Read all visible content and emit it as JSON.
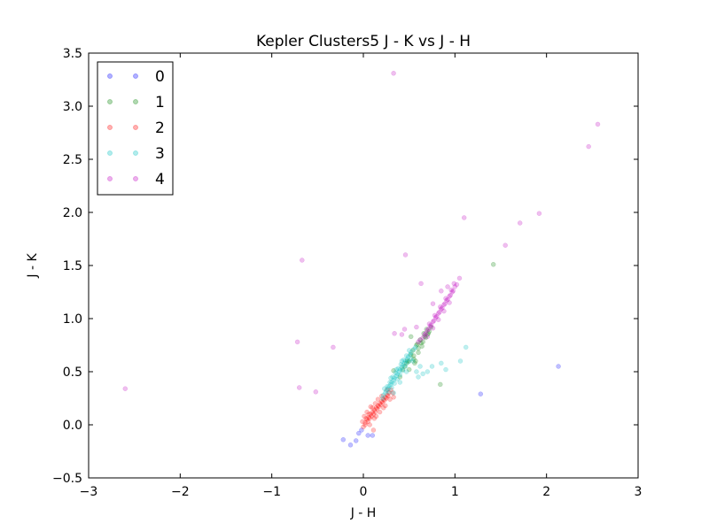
{
  "chart_data": {
    "type": "scatter",
    "title": "Kepler Clusters5 J - K vs J - H",
    "xlabel": "J - H",
    "ylabel": "J - K",
    "xlim": [
      -3,
      3
    ],
    "ylim": [
      -0.5,
      3.5
    ],
    "xticks": [
      -3,
      -2,
      -1,
      0,
      1,
      2,
      3
    ],
    "xtick_labels": [
      "−3",
      "−2",
      "−1",
      "0",
      "1",
      "2",
      "3"
    ],
    "yticks": [
      -0.5,
      0.0,
      0.5,
      1.0,
      1.5,
      2.0,
      2.5,
      3.0,
      3.5
    ],
    "ytick_labels": [
      "−0.5",
      "0.0",
      "0.5",
      "1.0",
      "1.5",
      "2.0",
      "2.5",
      "3.0",
      "3.5"
    ],
    "grid": false,
    "legend_position": "top-left",
    "series": [
      {
        "name": "0",
        "color": "#0000ff",
        "points": [
          [
            -0.22,
            -0.14
          ],
          [
            -0.14,
            -0.19
          ],
          [
            -0.08,
            -0.15
          ],
          [
            -0.05,
            -0.08
          ],
          [
            -0.02,
            -0.05
          ],
          [
            1.28,
            0.29
          ],
          [
            2.13,
            0.55
          ],
          [
            0.05,
            -0.1
          ],
          [
            0.1,
            -0.1
          ]
        ]
      },
      {
        "name": "1",
        "color": "#008000",
        "points": [
          [
            0.45,
            0.55
          ],
          [
            0.5,
            0.6
          ],
          [
            0.55,
            0.65
          ],
          [
            0.6,
            0.72
          ],
          [
            0.65,
            0.78
          ],
          [
            0.68,
            0.82
          ],
          [
            0.7,
            0.85
          ],
          [
            0.72,
            0.88
          ],
          [
            0.58,
            0.75
          ],
          [
            0.62,
            0.8
          ],
          [
            0.66,
            0.86
          ],
          [
            0.52,
            0.66
          ],
          [
            0.48,
            0.6
          ],
          [
            0.55,
            0.62
          ],
          [
            0.6,
            0.68
          ],
          [
            0.64,
            0.74
          ],
          [
            0.5,
            0.52
          ],
          [
            0.56,
            0.58
          ],
          [
            0.54,
            0.7
          ],
          [
            0.69,
            0.9
          ],
          [
            0.74,
            0.92
          ],
          [
            0.43,
            0.52
          ],
          [
            0.47,
            0.58
          ],
          [
            0.59,
            0.76
          ],
          [
            0.67,
            0.83
          ],
          [
            0.71,
            0.86
          ],
          [
            0.63,
            0.77
          ],
          [
            1.42,
            1.51
          ],
          [
            0.84,
            0.38
          ],
          [
            0.33,
            0.51
          ],
          [
            0.52,
            0.83
          ],
          [
            0.4,
            0.45
          ],
          [
            0.57,
            0.6
          ]
        ]
      },
      {
        "name": "2",
        "color": "#ff0000",
        "points": [
          [
            0.0,
            -0.02
          ],
          [
            0.02,
            0.02
          ],
          [
            0.04,
            0.05
          ],
          [
            0.06,
            0.07
          ],
          [
            0.08,
            0.1
          ],
          [
            0.1,
            0.12
          ],
          [
            0.12,
            0.14
          ],
          [
            0.14,
            0.16
          ],
          [
            0.16,
            0.18
          ],
          [
            0.18,
            0.2
          ],
          [
            0.2,
            0.22
          ],
          [
            0.22,
            0.24
          ],
          [
            0.24,
            0.26
          ],
          [
            0.26,
            0.28
          ],
          [
            0.28,
            0.3
          ],
          [
            0.3,
            0.33
          ],
          [
            0.02,
            0.0
          ],
          [
            0.05,
            0.03
          ],
          [
            0.07,
            0.06
          ],
          [
            0.09,
            0.08
          ],
          [
            0.11,
            0.1
          ],
          [
            0.13,
            0.12
          ],
          [
            0.15,
            0.15
          ],
          [
            0.17,
            0.17
          ],
          [
            0.19,
            0.19
          ],
          [
            0.21,
            0.21
          ],
          [
            0.23,
            0.23
          ],
          [
            0.25,
            0.25
          ],
          [
            0.27,
            0.27
          ],
          [
            0.03,
            0.06
          ],
          [
            0.06,
            0.1
          ],
          [
            0.1,
            0.16
          ],
          [
            0.13,
            0.2
          ],
          [
            0.16,
            0.24
          ],
          [
            0.2,
            0.27
          ],
          [
            0.07,
            0.0
          ],
          [
            0.12,
            0.06
          ],
          [
            0.18,
            0.12
          ],
          [
            0.24,
            0.18
          ],
          [
            -0.01,
            0.03
          ],
          [
            0.01,
            0.08
          ],
          [
            0.04,
            0.12
          ],
          [
            0.29,
            0.24
          ],
          [
            0.32,
            0.3
          ],
          [
            0.14,
            0.08
          ],
          [
            0.22,
            0.16
          ],
          [
            0.33,
            0.26
          ],
          [
            0.08,
            0.17
          ],
          [
            0.11,
            -0.05
          ],
          [
            0.26,
            0.33
          ]
        ]
      },
      {
        "name": "3",
        "color": "#00bfbf",
        "points": [
          [
            0.22,
            0.28
          ],
          [
            0.25,
            0.32
          ],
          [
            0.28,
            0.36
          ],
          [
            0.31,
            0.4
          ],
          [
            0.34,
            0.44
          ],
          [
            0.37,
            0.48
          ],
          [
            0.4,
            0.52
          ],
          [
            0.43,
            0.56
          ],
          [
            0.46,
            0.6
          ],
          [
            0.49,
            0.64
          ],
          [
            0.52,
            0.68
          ],
          [
            0.55,
            0.71
          ],
          [
            0.24,
            0.3
          ],
          [
            0.27,
            0.34
          ],
          [
            0.3,
            0.38
          ],
          [
            0.33,
            0.42
          ],
          [
            0.36,
            0.46
          ],
          [
            0.39,
            0.5
          ],
          [
            0.42,
            0.54
          ],
          [
            0.45,
            0.58
          ],
          [
            0.48,
            0.62
          ],
          [
            0.51,
            0.66
          ],
          [
            0.26,
            0.36
          ],
          [
            0.29,
            0.4
          ],
          [
            0.32,
            0.45
          ],
          [
            0.35,
            0.49
          ],
          [
            0.38,
            0.53
          ],
          [
            0.41,
            0.57
          ],
          [
            0.44,
            0.61
          ],
          [
            0.47,
            0.65
          ],
          [
            0.28,
            0.31
          ],
          [
            0.31,
            0.35
          ],
          [
            0.34,
            0.39
          ],
          [
            0.37,
            0.43
          ],
          [
            0.4,
            0.47
          ],
          [
            0.43,
            0.51
          ],
          [
            0.46,
            0.55
          ],
          [
            0.49,
            0.59
          ],
          [
            0.52,
            0.62
          ],
          [
            0.23,
            0.34
          ],
          [
            0.3,
            0.44
          ],
          [
            0.36,
            0.52
          ],
          [
            0.42,
            0.6
          ],
          [
            0.5,
            0.7
          ],
          [
            0.33,
            0.3
          ],
          [
            0.4,
            0.4
          ],
          [
            0.47,
            0.5
          ],
          [
            0.54,
            0.6
          ],
          [
            0.21,
            0.25
          ],
          [
            0.57,
            0.73
          ],
          [
            0.85,
            0.58
          ],
          [
            0.9,
            0.52
          ],
          [
            1.06,
            0.6
          ],
          [
            1.12,
            0.73
          ],
          [
            0.6,
            0.45
          ],
          [
            0.65,
            0.48
          ],
          [
            0.62,
            0.55
          ],
          [
            0.58,
            0.5
          ],
          [
            0.7,
            0.5
          ],
          [
            0.75,
            0.55
          ]
        ]
      },
      {
        "name": "4",
        "color": "#bf00bf",
        "points": [
          [
            0.65,
            0.82
          ],
          [
            0.68,
            0.86
          ],
          [
            0.71,
            0.9
          ],
          [
            0.74,
            0.94
          ],
          [
            0.77,
            0.98
          ],
          [
            0.8,
            1.02
          ],
          [
            0.83,
            1.06
          ],
          [
            0.86,
            1.1
          ],
          [
            0.89,
            1.14
          ],
          [
            0.92,
            1.18
          ],
          [
            0.95,
            1.22
          ],
          [
            0.98,
            1.26
          ],
          [
            1.0,
            1.3
          ],
          [
            0.67,
            0.85
          ],
          [
            0.7,
            0.89
          ],
          [
            0.73,
            0.93
          ],
          [
            0.76,
            0.97
          ],
          [
            0.79,
            1.01
          ],
          [
            0.82,
            1.05
          ],
          [
            0.85,
            1.09
          ],
          [
            0.88,
            1.13
          ],
          [
            0.91,
            1.17
          ],
          [
            0.94,
            1.21
          ],
          [
            0.97,
            1.25
          ],
          [
            0.72,
            0.95
          ],
          [
            0.78,
            1.03
          ],
          [
            0.84,
            1.11
          ],
          [
            0.9,
            1.19
          ],
          [
            0.96,
            1.27
          ],
          [
            0.7,
            0.83
          ],
          [
            0.76,
            0.91
          ],
          [
            0.82,
            0.99
          ],
          [
            0.88,
            1.07
          ],
          [
            0.94,
            1.15
          ],
          [
            1.02,
            1.32
          ],
          [
            1.05,
            1.38
          ],
          [
            0.99,
            1.33
          ],
          [
            0.6,
            0.78
          ],
          [
            0.62,
            0.8
          ],
          [
            0.76,
            1.14
          ],
          [
            0.63,
            1.33
          ],
          [
            0.58,
            0.92
          ],
          [
            0.45,
            0.9
          ],
          [
            0.34,
            0.86
          ],
          [
            0.42,
            0.85
          ],
          [
            0.33,
            3.31
          ],
          [
            2.56,
            2.83
          ],
          [
            2.46,
            2.62
          ],
          [
            1.92,
            1.99
          ],
          [
            1.71,
            1.9
          ],
          [
            1.55,
            1.69
          ],
          [
            1.1,
            1.95
          ],
          [
            0.46,
            1.6
          ],
          [
            -0.67,
            1.55
          ],
          [
            -0.72,
            0.78
          ],
          [
            -0.33,
            0.73
          ],
          [
            -0.7,
            0.35
          ],
          [
            -0.52,
            0.31
          ],
          [
            -2.6,
            0.34
          ],
          [
            0.85,
            1.26
          ],
          [
            0.92,
            1.3
          ]
        ]
      }
    ]
  }
}
